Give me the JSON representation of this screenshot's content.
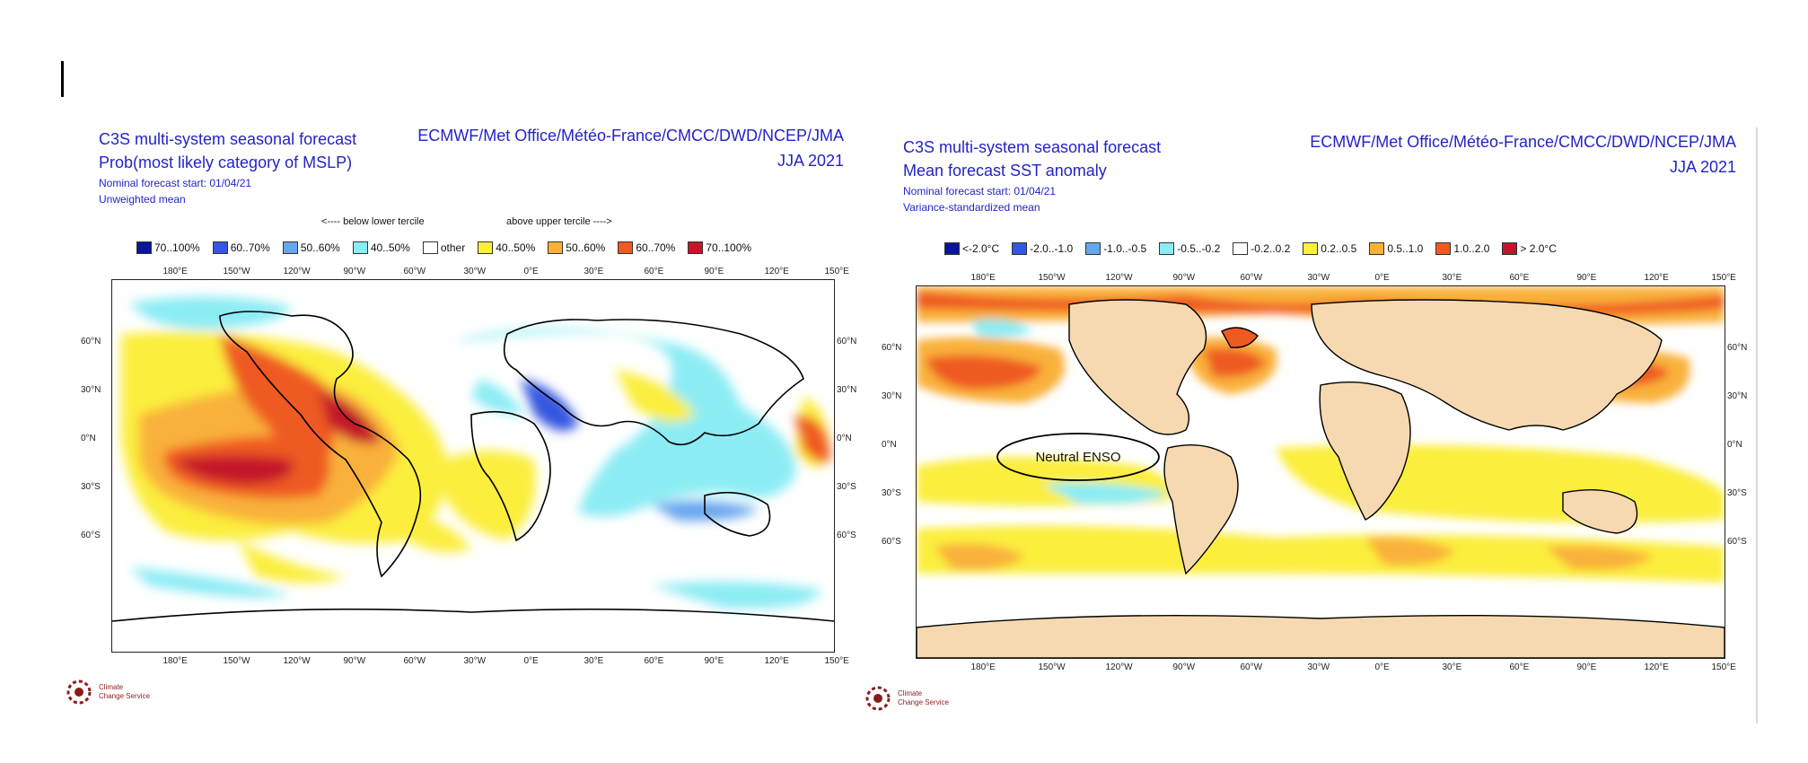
{
  "left_panel": {
    "title_line1": "C3S multi-system seasonal forecast",
    "title_line2": "Prob(most likely category of MSLP)",
    "start_line": "Nominal forecast start: 01/04/21",
    "mean_line": "Unweighted mean",
    "centres": "ECMWF/Met Office/Météo-France/CMCC/DWD/NCEP/JMA",
    "season": "JJA 2021",
    "below_label": "<---- below lower tercile",
    "above_label": "above upper tercile ---->",
    "legend": [
      {
        "label": "70..100%",
        "color": "#08169a"
      },
      {
        "label": "60..70%",
        "color": "#3457e0"
      },
      {
        "label": "50..60%",
        "color": "#66a6ee"
      },
      {
        "label": "40..50%",
        "color": "#8cecf4"
      },
      {
        "label": "other",
        "color": "#ffffff"
      },
      {
        "label": "40..50%",
        "color": "#fbee3e"
      },
      {
        "label": "50..60%",
        "color": "#f9b13a"
      },
      {
        "label": "60..70%",
        "color": "#ef5a22"
      },
      {
        "label": "70..100%",
        "color": "#c4162a"
      }
    ]
  },
  "right_panel": {
    "title_line1": "C3S multi-system seasonal forecast",
    "title_line2": "Mean forecast SST anomaly",
    "start_line": "Nominal forecast start: 01/04/21",
    "mean_line": "Variance-standardized mean",
    "centres": "ECMWF/Met Office/Météo-France/CMCC/DWD/NCEP/JMA",
    "season": "JJA 2021",
    "annotation": "Neutral ENSO",
    "legend": [
      {
        "label": "<-2.0°C",
        "color": "#08169a"
      },
      {
        "label": "-2.0..-1.0",
        "color": "#3457e0"
      },
      {
        "label": "-1.0..-0.5",
        "color": "#66a6ee"
      },
      {
        "label": "-0.5..-0.2",
        "color": "#8cecf4"
      },
      {
        "label": "-0.2..0.2",
        "color": "#ffffff"
      },
      {
        "label": "0.2..0.5",
        "color": "#fbee3e"
      },
      {
        "label": "0.5..1.0",
        "color": "#f9b13a"
      },
      {
        "label": "1.0..2.0",
        "color": "#ef5a22"
      },
      {
        "label": "> 2.0°C",
        "color": "#c4162a"
      }
    ]
  },
  "axes": {
    "lon_labels": [
      "180°E",
      "150°W",
      "120°W",
      "90°W",
      "60°W",
      "30°W",
      "0°E",
      "30°E",
      "60°E",
      "90°E",
      "120°E",
      "150°E"
    ],
    "lat_labels": [
      "60°N",
      "30°N",
      "0°N",
      "30°S",
      "60°S"
    ]
  },
  "logo": {
    "line1": "Climate",
    "line2": "Change Service"
  },
  "colors": {
    "land_right": "#f6d9b0",
    "title_blue": "#2323c8"
  }
}
